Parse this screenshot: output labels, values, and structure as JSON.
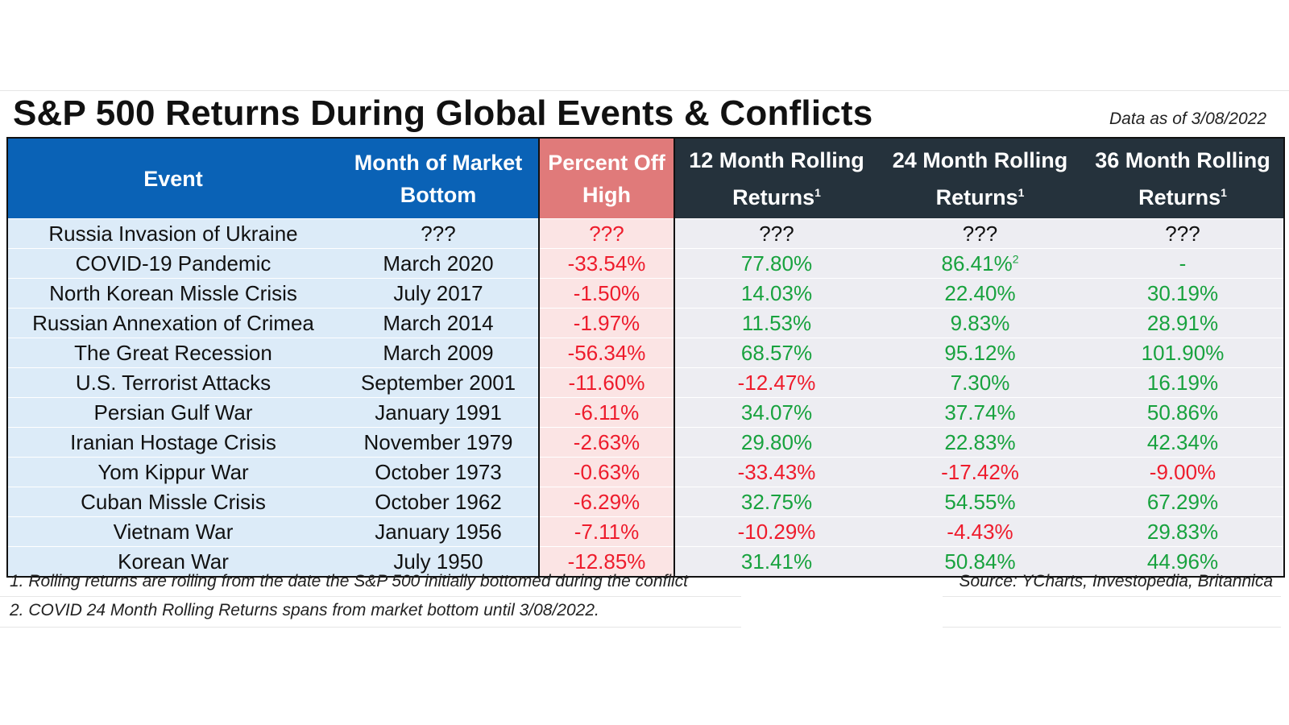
{
  "header": {
    "title": "S&P 500 Returns During Global Events & Conflicts",
    "as_of": "Data as of 3/08/2022"
  },
  "chart_data": {
    "type": "table",
    "title": "S&P 500 Returns During Global Events & Conflicts",
    "columns": [
      {
        "label": "Event",
        "sup": ""
      },
      {
        "label": "Month of Market Bottom",
        "sup": ""
      },
      {
        "label": "Percent Off High",
        "sup": ""
      },
      {
        "label": "12 Month Rolling Returns",
        "sup": "1"
      },
      {
        "label": "24 Month Rolling Returns",
        "sup": "1"
      },
      {
        "label": "36 Month Rolling Returns",
        "sup": "1"
      }
    ],
    "rows": [
      {
        "event": "Russia Invasion of Ukraine",
        "month": "???",
        "pct_off_high": "???",
        "r12": "???",
        "r24": "???",
        "r24_sup": "",
        "r36": "???"
      },
      {
        "event": "COVID-19 Pandemic",
        "month": "March 2020",
        "pct_off_high": "-33.54%",
        "r12": "77.80%",
        "r24": "86.41%",
        "r24_sup": "2",
        "r36": "-"
      },
      {
        "event": "North Korean Missle Crisis",
        "month": "July 2017",
        "pct_off_high": "-1.50%",
        "r12": "14.03%",
        "r24": "22.40%",
        "r24_sup": "",
        "r36": "30.19%"
      },
      {
        "event": "Russian Annexation of Crimea",
        "month": "March 2014",
        "pct_off_high": "-1.97%",
        "r12": "11.53%",
        "r24": "9.83%",
        "r24_sup": "",
        "r36": "28.91%"
      },
      {
        "event": "The Great Recession",
        "month": "March 2009",
        "pct_off_high": "-56.34%",
        "r12": "68.57%",
        "r24": "95.12%",
        "r24_sup": "",
        "r36": "101.90%"
      },
      {
        "event": "U.S. Terrorist Attacks",
        "month": "September 2001",
        "pct_off_high": "-11.60%",
        "r12": "-12.47%",
        "r24": "7.30%",
        "r24_sup": "",
        "r36": "16.19%"
      },
      {
        "event": "Persian Gulf War",
        "month": "January 1991",
        "pct_off_high": "-6.11%",
        "r12": "34.07%",
        "r24": "37.74%",
        "r24_sup": "",
        "r36": "50.86%"
      },
      {
        "event": "Iranian Hostage Crisis",
        "month": "November 1979",
        "pct_off_high": "-2.63%",
        "r12": "29.80%",
        "r24": "22.83%",
        "r24_sup": "",
        "r36": "42.34%"
      },
      {
        "event": "Yom Kippur War",
        "month": "October 1973",
        "pct_off_high": "-0.63%",
        "r12": "-33.43%",
        "r24": "-17.42%",
        "r24_sup": "",
        "r36": "-9.00%"
      },
      {
        "event": "Cuban Missle Crisis",
        "month": "October 1962",
        "pct_off_high": "-6.29%",
        "r12": "32.75%",
        "r24": "54.55%",
        "r24_sup": "",
        "r36": "67.29%"
      },
      {
        "event": "Vietnam War",
        "month": "January 1956",
        "pct_off_high": "-7.11%",
        "r12": "-10.29%",
        "r24": "-4.43%",
        "r24_sup": "",
        "r36": "29.83%"
      },
      {
        "event": "Korean War",
        "month": "July 1950",
        "pct_off_high": "-12.85%",
        "r12": "31.41%",
        "r24": "50.84%",
        "r24_sup": "",
        "r36": "44.96%"
      }
    ]
  },
  "footer": {
    "note1": "1. Rolling returns are rolling from the date the S&P 500 initially bottomed during the conflict",
    "note2": "2. COVID 24 Month Rolling Returns spans from market bottom until 3/08/2022.",
    "source": "Source: YCharts, Investopedia, Britannica"
  },
  "colors": {
    "event_header": "#0a62b6",
    "pct_header": "#e07a7a",
    "returns_header": "#25323c",
    "positive": "#18a23e",
    "negative": "#ee1c2c"
  }
}
